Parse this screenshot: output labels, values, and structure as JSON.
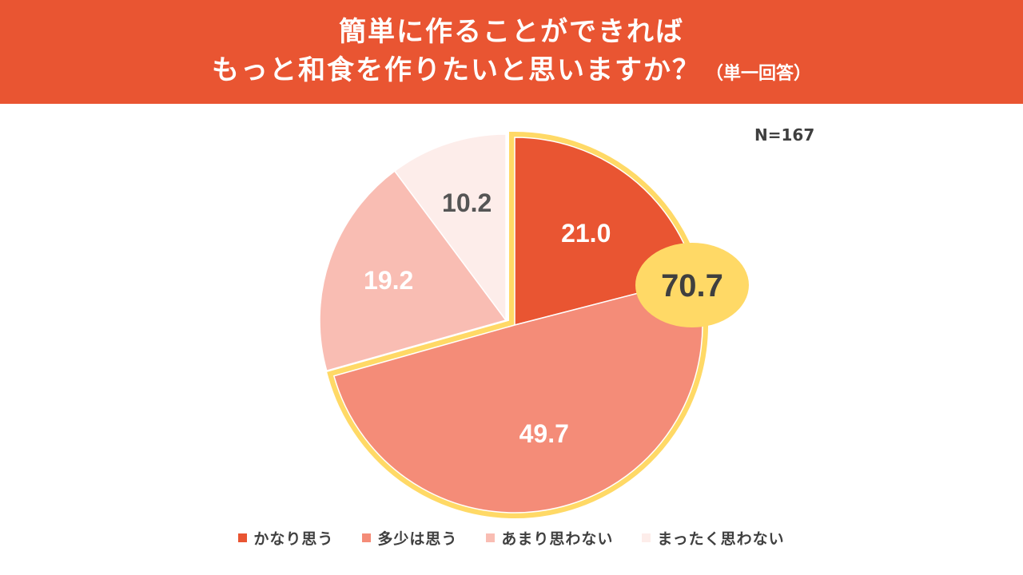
{
  "header": {
    "title_line1": "簡単に作ることができれば",
    "title_line2": "もっと和食を作りたいと思いますか？",
    "title_note": "（単一回答）"
  },
  "sample_size": "N=167",
  "colors": {
    "header_bg": "#E95532",
    "highlight": "#FFD966",
    "slices": [
      "#E95532",
      "#F48C78",
      "#F9BDB3",
      "#FDEDEA"
    ]
  },
  "chart_data": {
    "type": "pie",
    "title": "簡単に作ることができれば もっと和食を作りたいと思いますか？（単一回答）",
    "categories": [
      "かなり思う",
      "多少は思う",
      "あまり思わない",
      "まったく思わない"
    ],
    "values": [
      21.0,
      49.7,
      19.2,
      10.2
    ],
    "value_labels": [
      "21.0",
      "49.7",
      "19.2",
      "10.2"
    ],
    "combined_highlight": {
      "categories": [
        "かなり思う",
        "多少は思う"
      ],
      "value": 70.7,
      "label": "70.7"
    },
    "legend_position": "bottom"
  }
}
